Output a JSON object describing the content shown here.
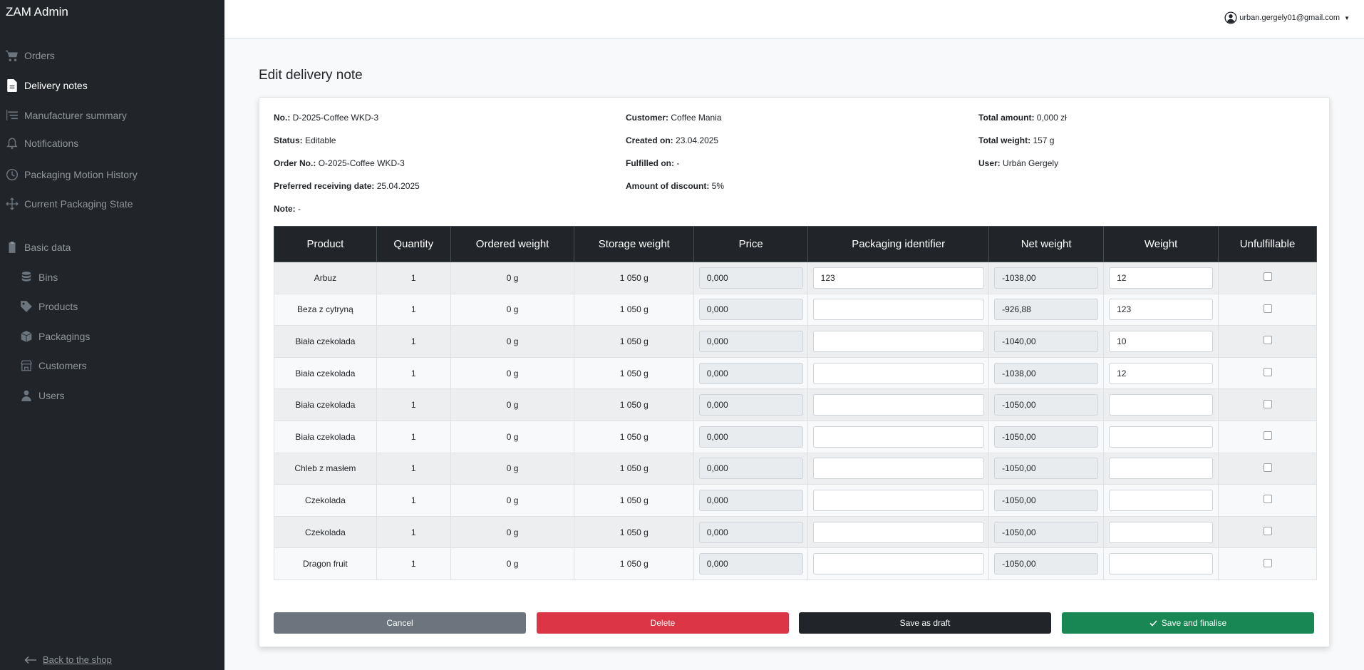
{
  "app": {
    "title": "ZAM Admin"
  },
  "sidebar": {
    "items": [
      {
        "label": "Orders",
        "icon": "cart-icon"
      },
      {
        "label": "Delivery notes",
        "icon": "file-icon",
        "active": true
      },
      {
        "label": "Manufacturer summary",
        "icon": "list-tree-icon"
      },
      {
        "label": "Notifications",
        "icon": "bell-icon"
      },
      {
        "label": "Packaging Motion History",
        "icon": "clock-icon"
      },
      {
        "label": "Current Packaging State",
        "icon": "arrows-move-icon"
      },
      {
        "label": "Basic data",
        "icon": "clipboard-icon"
      },
      {
        "label": "Bins",
        "icon": "database-icon"
      },
      {
        "label": "Products",
        "icon": "tag-icon"
      },
      {
        "label": "Packagings",
        "icon": "box-icon"
      },
      {
        "label": "Customers",
        "icon": "shop-icon"
      },
      {
        "label": "Users",
        "icon": "person-icon"
      }
    ],
    "back_label": "Back to the shop"
  },
  "header": {
    "user_email": "urban.gergely01@gmail.com"
  },
  "page": {
    "title": "Edit delivery note"
  },
  "note": {
    "no_label": "No.:",
    "no_value": "D-2025-Coffee WKD-3",
    "status_label": "Status:",
    "status_value": "Editable",
    "order_label": "Order No.:",
    "order_value": "O-2025-Coffee WKD-3",
    "pref_label": "Preferred receiving date:",
    "pref_value": "25.04.2025",
    "note_label": "Note:",
    "note_value": "-",
    "customer_label": "Customer:",
    "customer_value": "Coffee Mania",
    "created_label": "Created on:",
    "created_value": "23.04.2025",
    "fulfilled_label": "Fulfilled on:",
    "fulfilled_value": "-",
    "discount_label": "Amount of discount:",
    "discount_value": "5%",
    "total_amount_label": "Total amount:",
    "total_amount_value": "0,000 zł",
    "total_weight_label": "Total weight:",
    "total_weight_value": "157 g",
    "user_label": "User:",
    "user_value": "Urbán Gergely"
  },
  "table": {
    "headers": [
      "Product",
      "Quantity",
      "Ordered weight",
      "Storage weight",
      "Price",
      "Packaging identifier",
      "Net weight",
      "Weight",
      "Unfulfillable"
    ],
    "rows": [
      {
        "product": "Arbuz",
        "quantity": "1",
        "ordered": "0 g",
        "storage": "1 050 g",
        "price": "0,000",
        "pack": "123",
        "net": "-1038,00",
        "weight": "12",
        "unfulfillable": false
      },
      {
        "product": "Beza z cytryną",
        "quantity": "1",
        "ordered": "0 g",
        "storage": "1 050 g",
        "price": "0,000",
        "pack": "",
        "net": "-926,88",
        "weight": "123",
        "unfulfillable": false
      },
      {
        "product": "Biała czekolada",
        "quantity": "1",
        "ordered": "0 g",
        "storage": "1 050 g",
        "price": "0,000",
        "pack": "",
        "net": "-1040,00",
        "weight": "10",
        "unfulfillable": false
      },
      {
        "product": "Biała czekolada",
        "quantity": "1",
        "ordered": "0 g",
        "storage": "1 050 g",
        "price": "0,000",
        "pack": "",
        "net": "-1038,00",
        "weight": "12",
        "unfulfillable": false
      },
      {
        "product": "Biała czekolada",
        "quantity": "1",
        "ordered": "0 g",
        "storage": "1 050 g",
        "price": "0,000",
        "pack": "",
        "net": "-1050,00",
        "weight": "",
        "unfulfillable": false
      },
      {
        "product": "Biała czekolada",
        "quantity": "1",
        "ordered": "0 g",
        "storage": "1 050 g",
        "price": "0,000",
        "pack": "",
        "net": "-1050,00",
        "weight": "",
        "unfulfillable": false
      },
      {
        "product": "Chleb z masłem",
        "quantity": "1",
        "ordered": "0 g",
        "storage": "1 050 g",
        "price": "0,000",
        "pack": "",
        "net": "-1050,00",
        "weight": "",
        "unfulfillable": false
      },
      {
        "product": "Czekolada",
        "quantity": "1",
        "ordered": "0 g",
        "storage": "1 050 g",
        "price": "0,000",
        "pack": "",
        "net": "-1050,00",
        "weight": "",
        "unfulfillable": false
      },
      {
        "product": "Czekolada",
        "quantity": "1",
        "ordered": "0 g",
        "storage": "1 050 g",
        "price": "0,000",
        "pack": "",
        "net": "-1050,00",
        "weight": "",
        "unfulfillable": false
      },
      {
        "product": "Dragon fruit",
        "quantity": "1",
        "ordered": "0 g",
        "storage": "1 050 g",
        "price": "0,000",
        "pack": "",
        "net": "-1050,00",
        "weight": "",
        "unfulfillable": false
      }
    ]
  },
  "actions": {
    "cancel_label": "Cancel",
    "delete_label": "Delete",
    "draft_label": "Save as draft",
    "finalise_label": "Save and finalise"
  },
  "colors": {
    "sidebar_bg": "#212529",
    "cancel": "#6c757d",
    "delete": "#dc3545",
    "draft": "#212529",
    "finalise": "#198754"
  }
}
